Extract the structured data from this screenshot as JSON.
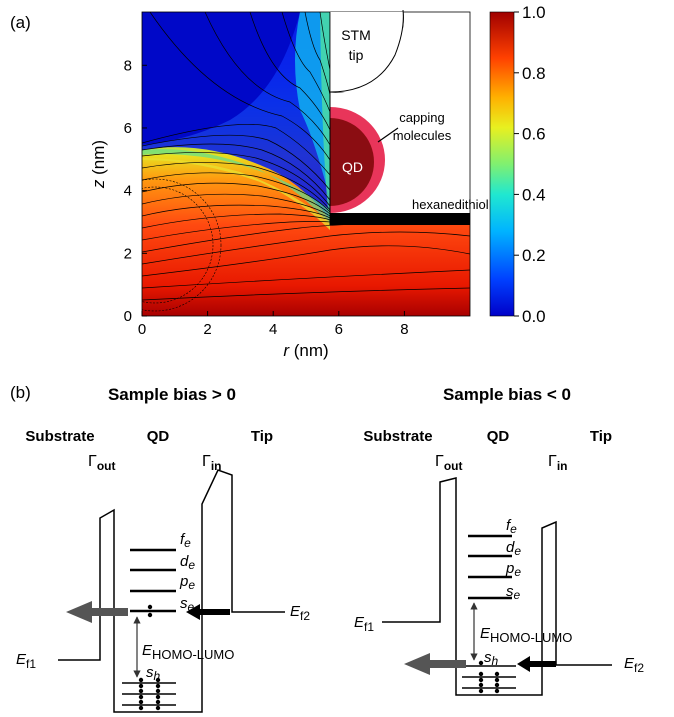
{
  "panel_a": {
    "label": "(a)",
    "x_axis": {
      "label_var": "r",
      "label_unit": " (nm)",
      "ticks": [
        "0",
        "2",
        "4",
        "6",
        "8"
      ],
      "range": [
        0,
        10
      ]
    },
    "y_axis": {
      "label_var": "z",
      "label_unit": " (nm)",
      "ticks": [
        "0",
        "2",
        "4",
        "6",
        "8"
      ],
      "range": [
        0,
        9.7
      ]
    },
    "colorbar": {
      "ticks": [
        "1.0",
        "0.8",
        "0.6",
        "0.4",
        "0.2",
        "0.0"
      ],
      "range": [
        0,
        1
      ]
    },
    "annotations": {
      "stm_tip": [
        "STM",
        "tip"
      ],
      "capping": [
        "capping",
        "molecules"
      ],
      "qd": "QD",
      "linker": "hexanedithiol"
    }
  },
  "panel_b": {
    "label": "(b)",
    "positive": {
      "title": "Sample bias > 0",
      "substrate": "Substrate",
      "qd": "QD",
      "tip": "Tip",
      "gamma_out": {
        "sym": "Γ",
        "sub": "out"
      },
      "gamma_in": {
        "sym": "Γ",
        "sub": "in"
      },
      "levels": [
        {
          "main": "f",
          "sub": "e"
        },
        {
          "main": "d",
          "sub": "e"
        },
        {
          "main": "p",
          "sub": "e"
        },
        {
          "main": "s",
          "sub": "e"
        }
      ],
      "ef1": {
        "main": "E",
        "sub": "f1"
      },
      "ef2": {
        "main": "E",
        "sub": "f2"
      },
      "gap": {
        "main": "E",
        "sub": "HOMO-LUMO"
      },
      "hole": {
        "main": "s",
        "sub": "h"
      }
    },
    "negative": {
      "title": "Sample bias < 0",
      "substrate": "Substrate",
      "qd": "QD",
      "tip": "Tip",
      "gamma_out": {
        "sym": "Γ",
        "sub": "out"
      },
      "gamma_in": {
        "sym": "Γ",
        "sub": "in"
      },
      "levels": [
        {
          "main": "f",
          "sub": "e"
        },
        {
          "main": "d",
          "sub": "e"
        },
        {
          "main": "p",
          "sub": "e"
        },
        {
          "main": "s",
          "sub": "e"
        }
      ],
      "ef1": {
        "main": "E",
        "sub": "f1"
      },
      "ef2": {
        "main": "E",
        "sub": "f2"
      },
      "gap": {
        "main": "E",
        "sub": "HOMO-LUMO"
      },
      "hole": {
        "main": "s",
        "sub": "h"
      }
    }
  },
  "colors": {
    "qd_fill": "#8b0d12",
    "capping": "#e8355a",
    "arrow": "#555555"
  }
}
